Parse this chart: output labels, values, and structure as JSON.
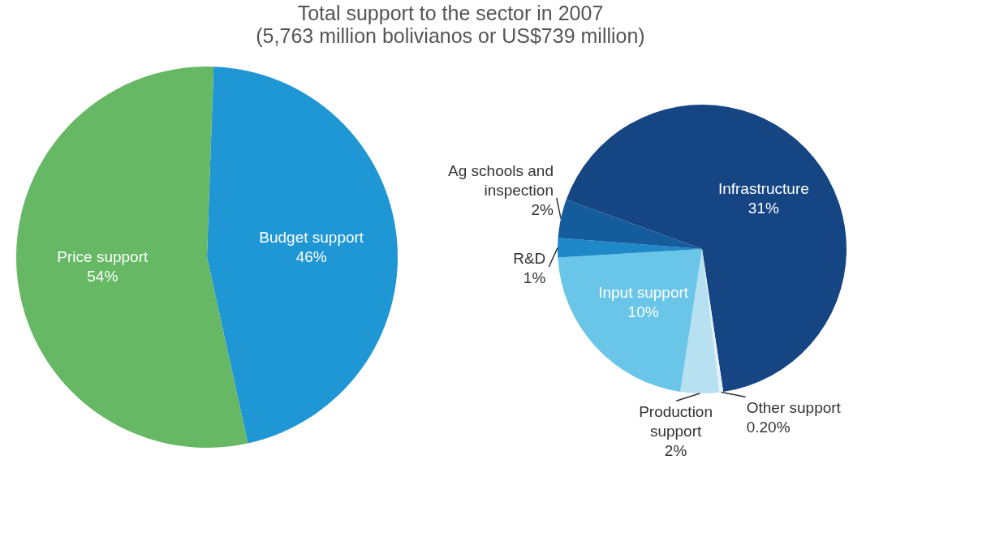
{
  "chart_data": [
    {
      "type": "pie",
      "title": "Total support to the sector in 2007",
      "subtitle": "(5,763 million bolivianos or US$739 million)",
      "categories": [
        "Budget support",
        "Price support"
      ],
      "values": [
        46,
        54
      ],
      "colors": [
        "#1f97d4",
        "#66b864"
      ],
      "value_labels": [
        "46%",
        "54%"
      ]
    },
    {
      "type": "pie",
      "categories": [
        "Infrastructure",
        "Other support",
        "Production support",
        "Input support",
        "R&D",
        "Ag schools and inspection"
      ],
      "values": [
        31,
        0.2,
        2,
        10,
        1,
        2
      ],
      "colors": [
        "#164584",
        "#e3f1f8",
        "#b7e0f0",
        "#69c6e8",
        "#1e88c8",
        "#155c9c"
      ],
      "value_labels": [
        "31%",
        "0.20%",
        "2%",
        "10%",
        "1%",
        "2%"
      ]
    }
  ]
}
